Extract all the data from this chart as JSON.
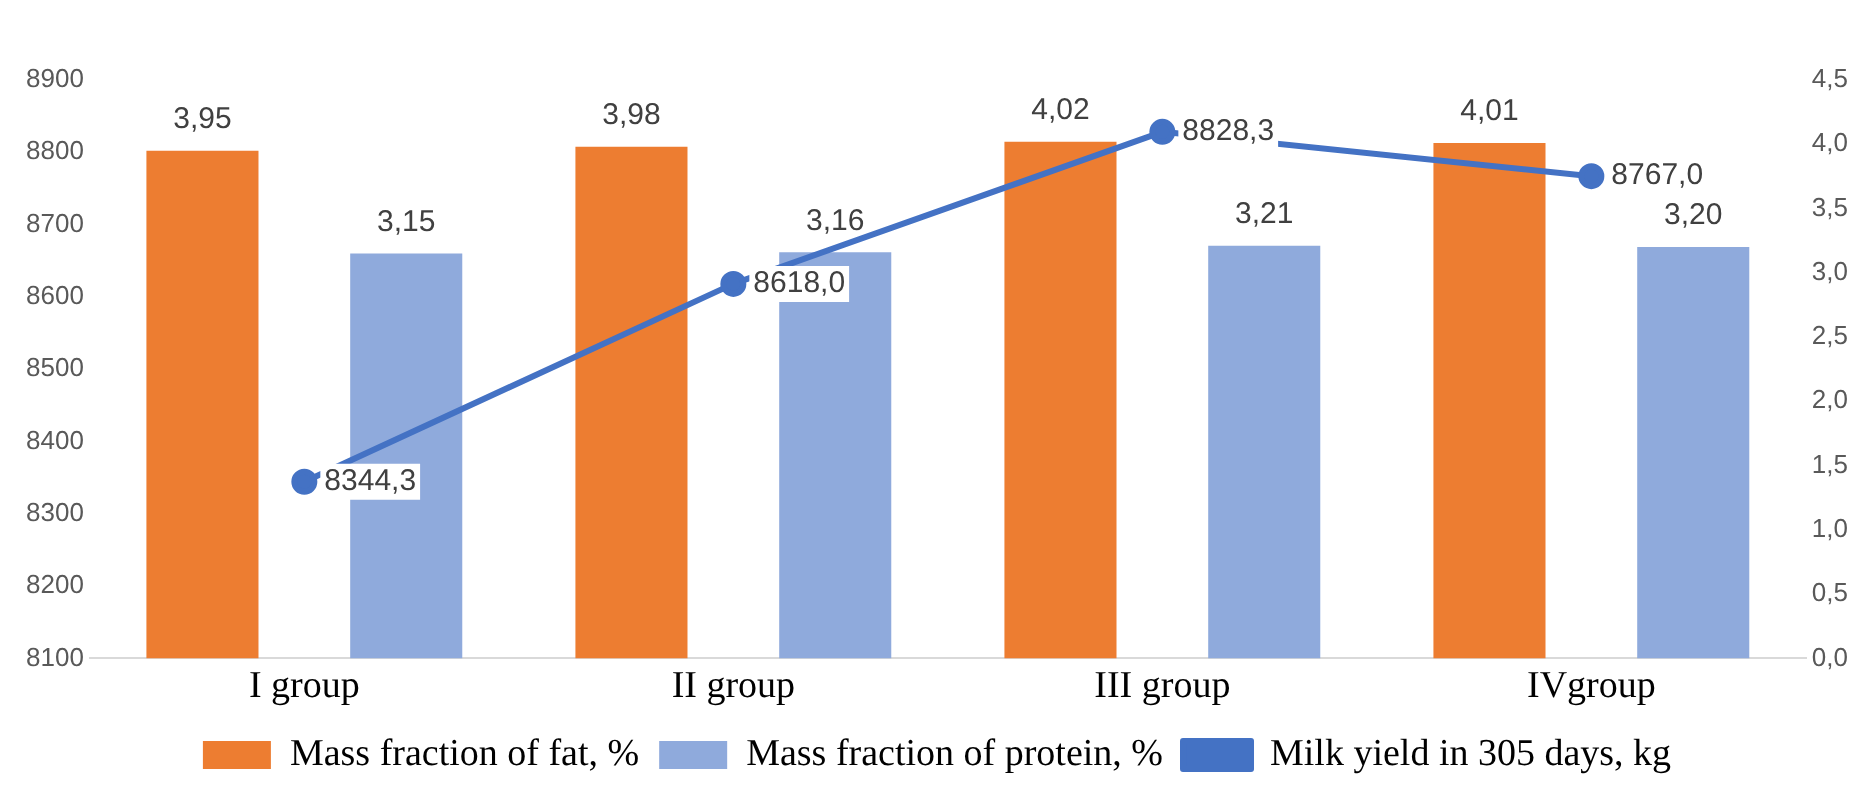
{
  "chart_data": {
    "type": "bar",
    "categories": [
      "I group",
      "II group",
      "III group",
      "IVgroup"
    ],
    "series": [
      {
        "name": "Mass fraction of fat, %",
        "axis": "y2",
        "color": "#ed7d31",
        "values": [
          3.95,
          3.98,
          4.02,
          4.01
        ],
        "value_labels": [
          "3,95",
          "3,98",
          "4,02",
          "4,01"
        ]
      },
      {
        "name": "Mass fraction of protein, %",
        "axis": "y2",
        "color": "#8faadc",
        "values": [
          3.15,
          3.16,
          3.21,
          3.2
        ],
        "value_labels": [
          "3,15",
          "3,16",
          "3,21",
          "3,20"
        ]
      },
      {
        "name": "Milk yield in 305 days, kg",
        "type": "line",
        "axis": "y",
        "color": "#4472c4",
        "marker": "circle",
        "values": [
          8344.3,
          8618.0,
          8828.3,
          8767.0
        ],
        "value_labels": [
          "8344,3",
          "8618,0",
          "8828,3",
          "8767,0"
        ]
      }
    ],
    "ylim": [
      8100,
      8900
    ],
    "yticks": [
      8100,
      8200,
      8300,
      8400,
      8500,
      8600,
      8700,
      8800,
      8900
    ],
    "y2lim": [
      0,
      4.5
    ],
    "y2ticks": [
      {
        "value": 0,
        "label": "0,0"
      },
      {
        "value": 0.5,
        "label": "0,5"
      },
      {
        "value": 1,
        "label": "1,0"
      },
      {
        "value": 1.5,
        "label": "1,5"
      },
      {
        "value": 2,
        "label": "2,0"
      },
      {
        "value": 2.5,
        "label": "2,5"
      },
      {
        "value": 3,
        "label": "3,0"
      },
      {
        "value": 3.5,
        "label": "3,5"
      },
      {
        "value": 4,
        "label": "4,0"
      },
      {
        "value": 4.5,
        "label": "4,5"
      }
    ],
    "grid": false,
    "legend": "bottom"
  }
}
